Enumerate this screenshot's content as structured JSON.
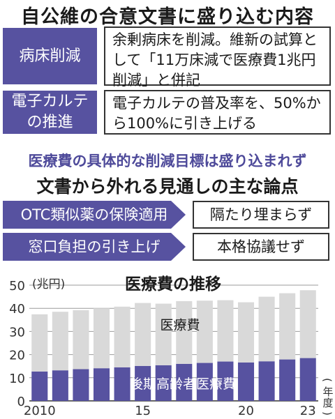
{
  "title": "自公維の合意文書に盛り込む内容",
  "items": [
    {
      "label": "病床削減",
      "text": "余剰病床を削減。維新の試算として「11万床減で医療費1兆円削減」と併記"
    },
    {
      "label": "電子カルテの推進",
      "text": "電子カルテの普及率を、50%から100%に引き上げる"
    }
  ],
  "note": "医療費の具体的な削減目標は盛り込まれず",
  "points_title": "文書から外れる見通しの主な論点",
  "points": [
    {
      "label": "OTC類似薬の保険適用",
      "status": "隔たり埋まらず"
    },
    {
      "label": "窓口負担の引き上げ",
      "status": "本格協議せず"
    }
  ],
  "colors": {
    "accent": "#5752a0",
    "light_bar": "#d9d9d9",
    "dark_bar": "#5752a0"
  },
  "chart_data": {
    "type": "bar",
    "stacked": true,
    "title": "医療費の推移",
    "ylabel": "(兆円)",
    "xlabel": "(年度)",
    "ylim": [
      0,
      50
    ],
    "yticks": [
      0,
      10,
      20,
      30,
      40,
      50
    ],
    "categories": [
      "2010",
      "2011",
      "2012",
      "2013",
      "2014",
      "15",
      "2016",
      "2017",
      "2018",
      "2019",
      "20",
      "2021",
      "2022",
      "23"
    ],
    "xtick_labels": [
      "2010",
      "",
      "",
      "",
      "",
      "15",
      "",
      "",
      "",
      "",
      "20",
      "",
      "",
      "23"
    ],
    "series": [
      {
        "name": "後期高齢者医療費",
        "values": [
          12.7,
          13.2,
          13.7,
          14.1,
          14.5,
          15.1,
          15.4,
          16.0,
          16.4,
          17.0,
          16.6,
          17.1,
          17.9,
          18.5
        ]
      },
      {
        "name": "医療費",
        "values": [
          24.7,
          25.3,
          25.5,
          25.9,
          26.2,
          27.2,
          26.6,
          27.1,
          26.9,
          26.5,
          26.0,
          27.9,
          28.6,
          29.3
        ]
      }
    ],
    "grid": true
  }
}
